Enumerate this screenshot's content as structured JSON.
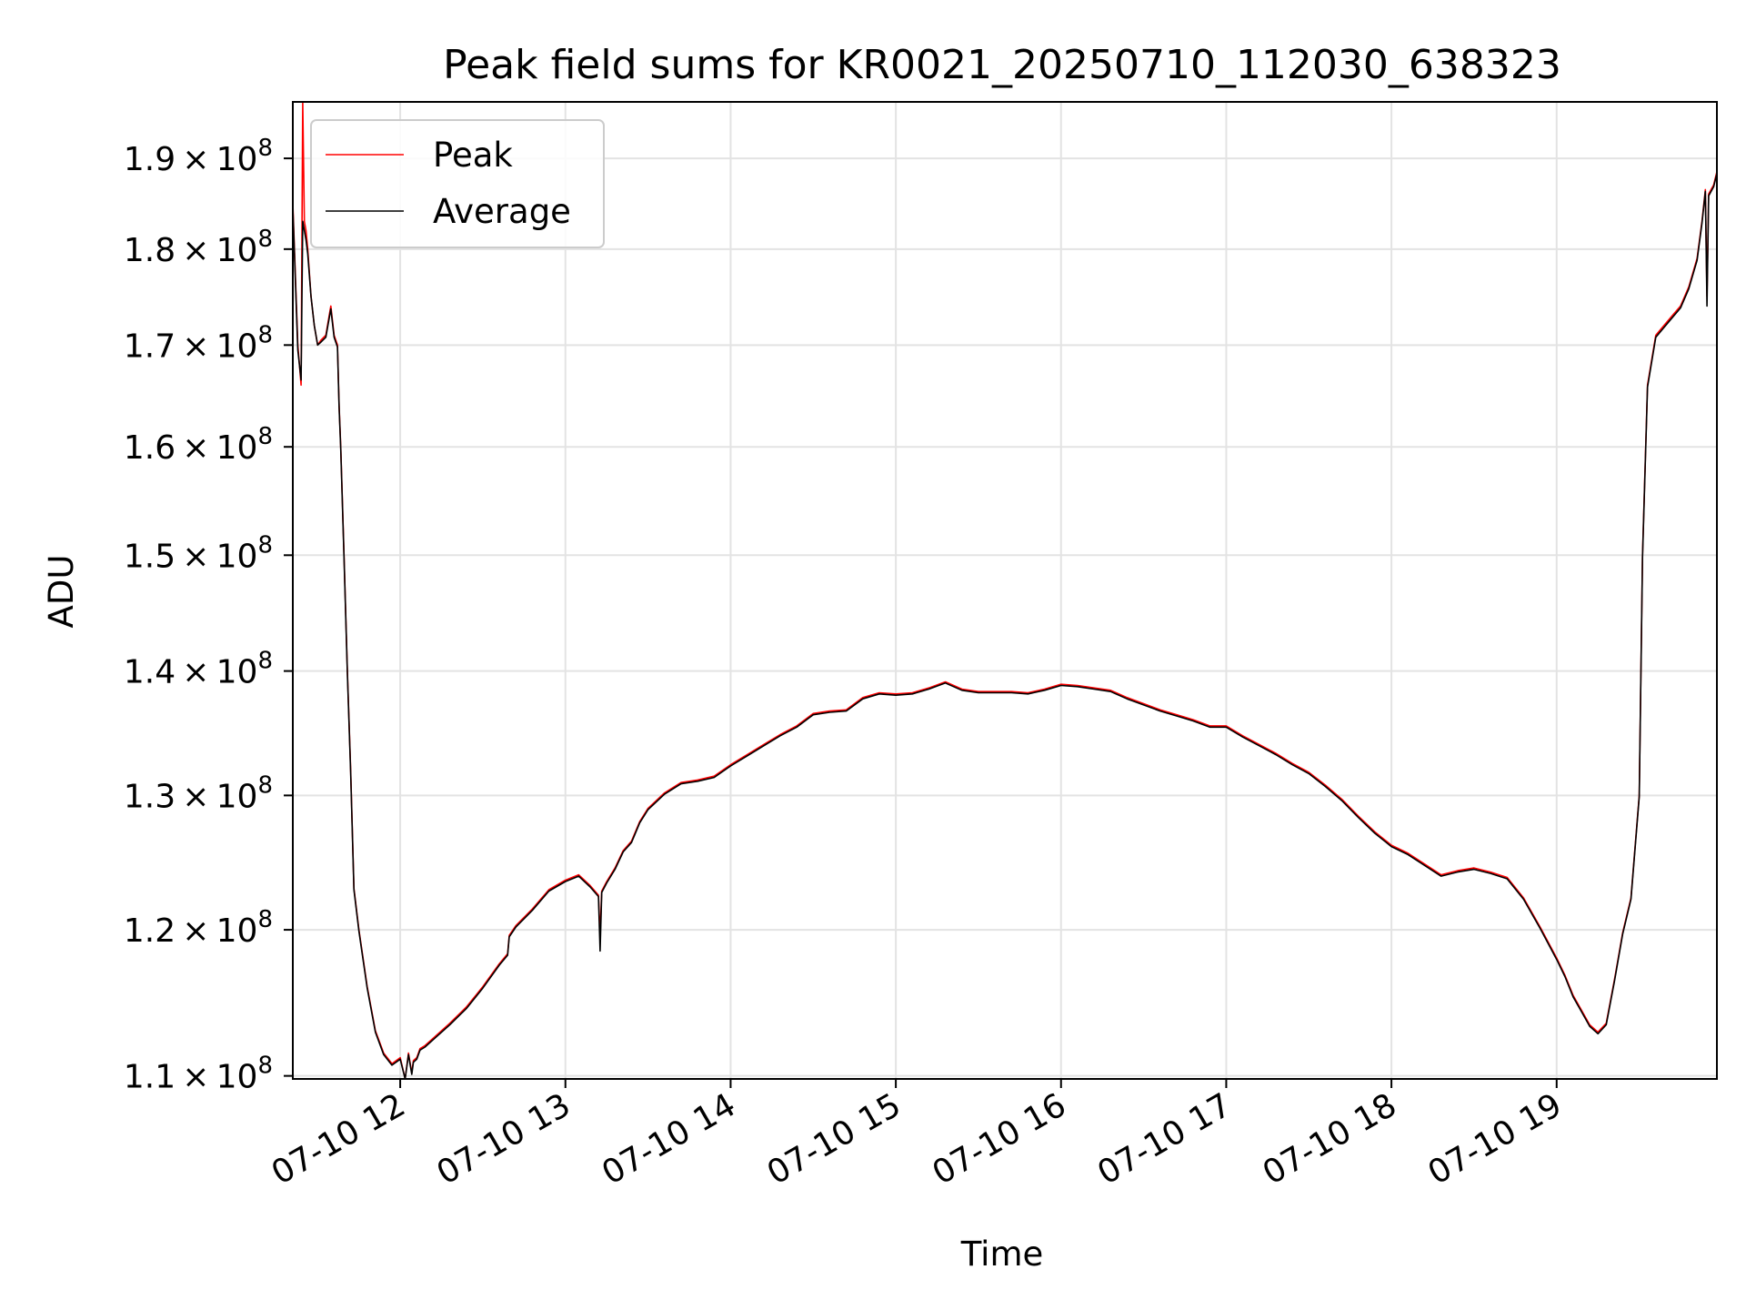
{
  "chart_data": {
    "type": "line",
    "title": "Peak field sums for KR0021_20250710_112030_638323",
    "xlabel": "Time",
    "ylabel": "ADU",
    "x_unit": "hour of 2025-07-10 (local time)",
    "y_scale": "log",
    "xlim": [
      11.35,
      19.97
    ],
    "ylim": [
      109800000,
      196500000
    ],
    "grid": true,
    "legend_position": "upper left",
    "x_ticks": [
      {
        "value": 12,
        "label": "07-10 12"
      },
      {
        "value": 13,
        "label": "07-10 13"
      },
      {
        "value": 14,
        "label": "07-10 14"
      },
      {
        "value": 15,
        "label": "07-10 15"
      },
      {
        "value": 16,
        "label": "07-10 16"
      },
      {
        "value": 17,
        "label": "07-10 17"
      },
      {
        "value": 18,
        "label": "07-10 18"
      },
      {
        "value": 19,
        "label": "07-10 19"
      }
    ],
    "y_ticks": [
      {
        "value": 110000000,
        "mantissa": "1.1",
        "base": "10",
        "exponent": "8"
      },
      {
        "value": 120000000,
        "mantissa": "1.2",
        "base": "10",
        "exponent": "8"
      },
      {
        "value": 130000000,
        "mantissa": "1.3",
        "base": "10",
        "exponent": "8"
      },
      {
        "value": 140000000,
        "mantissa": "1.4",
        "base": "10",
        "exponent": "8"
      },
      {
        "value": 150000000,
        "mantissa": "1.5",
        "base": "10",
        "exponent": "8"
      },
      {
        "value": 160000000,
        "mantissa": "1.6",
        "base": "10",
        "exponent": "8"
      },
      {
        "value": 170000000,
        "mantissa": "1.7",
        "base": "10",
        "exponent": "8"
      },
      {
        "value": 180000000,
        "mantissa": "1.8",
        "base": "10",
        "exponent": "8"
      },
      {
        "value": 190000000,
        "mantissa": "1.9",
        "base": "10",
        "exponent": "8"
      }
    ],
    "series": [
      {
        "name": "Peak",
        "color": "#ff0000",
        "x": [
          11.35,
          11.38,
          11.4,
          11.41,
          11.42,
          11.43,
          11.44,
          11.46,
          11.48,
          11.5,
          11.52,
          11.55,
          11.58,
          11.6,
          11.62,
          11.63,
          11.64,
          11.66,
          11.68,
          11.7,
          11.72,
          11.75,
          11.8,
          11.85,
          11.9,
          11.95,
          12.0,
          12.03,
          12.05,
          12.07,
          12.08,
          12.1,
          12.12,
          12.15,
          12.2,
          12.3,
          12.4,
          12.5,
          12.6,
          12.65,
          12.66,
          12.7,
          12.8,
          12.9,
          13.0,
          13.08,
          13.15,
          13.2,
          13.21,
          13.22,
          13.25,
          13.3,
          13.35,
          13.4,
          13.45,
          13.5,
          13.6,
          13.7,
          13.8,
          13.9,
          14.0,
          14.1,
          14.2,
          14.3,
          14.4,
          14.5,
          14.6,
          14.7,
          14.8,
          14.9,
          15.0,
          15.1,
          15.2,
          15.3,
          15.4,
          15.5,
          15.6,
          15.7,
          15.8,
          15.9,
          16.0,
          16.1,
          16.2,
          16.3,
          16.4,
          16.5,
          16.6,
          16.7,
          16.8,
          16.9,
          17.0,
          17.1,
          17.2,
          17.3,
          17.4,
          17.5,
          17.6,
          17.7,
          17.8,
          17.9,
          18.0,
          18.1,
          18.2,
          18.3,
          18.4,
          18.5,
          18.6,
          18.7,
          18.8,
          18.9,
          19.0,
          19.05,
          19.1,
          19.15,
          19.2,
          19.25,
          19.3,
          19.35,
          19.4,
          19.45,
          19.5,
          19.52,
          19.55,
          19.6,
          19.65,
          19.7,
          19.75,
          19.8,
          19.85,
          19.88,
          19.9,
          19.91,
          19.92,
          19.95,
          19.97
        ],
        "y": [
          185000000,
          170000000,
          166000000,
          196500000,
          183000000,
          182000000,
          180000000,
          175000000,
          172000000,
          170000000,
          170500000,
          171000000,
          174000000,
          171000000,
          170000000,
          164000000,
          160000000,
          150000000,
          140000000,
          132000000,
          123000000,
          120000000,
          116000000,
          113000000,
          111500000,
          110800000,
          111200000,
          109800000,
          111500000,
          110200000,
          111000000,
          111200000,
          111800000,
          112000000,
          112500000,
          113500000,
          114600000,
          116000000,
          117600000,
          118300000,
          119600000,
          120300000,
          121500000,
          122900000,
          123600000,
          124000000,
          123200000,
          122500000,
          119600000,
          122800000,
          123500000,
          124500000,
          125800000,
          126500000,
          128000000,
          129000000,
          130200000,
          131000000,
          131200000,
          131500000,
          132400000,
          133200000,
          134000000,
          134800000,
          135500000,
          136500000,
          136700000,
          136800000,
          137800000,
          138200000,
          138100000,
          138200000,
          138600000,
          139100000,
          138500000,
          138300000,
          138300000,
          138300000,
          138200000,
          138500000,
          138900000,
          138800000,
          138600000,
          138400000,
          137800000,
          137300000,
          136800000,
          136400000,
          136000000,
          135500000,
          135500000,
          134700000,
          134000000,
          133300000,
          132500000,
          131800000,
          130800000,
          129700000,
          128400000,
          127200000,
          126200000,
          125600000,
          124800000,
          124000000,
          124300000,
          124500000,
          124200000,
          123800000,
          122300000,
          120200000,
          118000000,
          116800000,
          115400000,
          114400000,
          113400000,
          112900000,
          113500000,
          116500000,
          119800000,
          122300000,
          130000000,
          150000000,
          166000000,
          171000000,
          172000000,
          173000000,
          174000000,
          176000000,
          179000000,
          183000000,
          186500000,
          175000000,
          186000000,
          187000000,
          188500000
        ]
      },
      {
        "name": "Average",
        "color": "#000000",
        "x": [
          11.35,
          11.38,
          11.4,
          11.41,
          11.42,
          11.43,
          11.44,
          11.46,
          11.48,
          11.5,
          11.52,
          11.55,
          11.58,
          11.6,
          11.62,
          11.63,
          11.64,
          11.66,
          11.68,
          11.7,
          11.72,
          11.75,
          11.8,
          11.85,
          11.9,
          11.95,
          12.0,
          12.03,
          12.05,
          12.07,
          12.08,
          12.1,
          12.12,
          12.15,
          12.2,
          12.3,
          12.4,
          12.5,
          12.6,
          12.65,
          12.66,
          12.7,
          12.8,
          12.9,
          13.0,
          13.08,
          13.15,
          13.2,
          13.21,
          13.22,
          13.25,
          13.3,
          13.35,
          13.4,
          13.45,
          13.5,
          13.6,
          13.7,
          13.8,
          13.9,
          14.0,
          14.1,
          14.2,
          14.3,
          14.4,
          14.5,
          14.6,
          14.7,
          14.8,
          14.9,
          15.0,
          15.1,
          15.2,
          15.3,
          15.4,
          15.5,
          15.6,
          15.7,
          15.8,
          15.9,
          16.0,
          16.1,
          16.2,
          16.3,
          16.4,
          16.5,
          16.6,
          16.7,
          16.8,
          16.9,
          17.0,
          17.1,
          17.2,
          17.3,
          17.4,
          17.5,
          17.6,
          17.7,
          17.8,
          17.9,
          18.0,
          18.1,
          18.2,
          18.3,
          18.4,
          18.5,
          18.6,
          18.7,
          18.8,
          18.9,
          19.0,
          19.05,
          19.1,
          19.15,
          19.2,
          19.25,
          19.3,
          19.35,
          19.4,
          19.45,
          19.5,
          19.52,
          19.55,
          19.6,
          19.65,
          19.7,
          19.75,
          19.8,
          19.85,
          19.88,
          19.9,
          19.91,
          19.92,
          19.95,
          19.97
        ],
        "y": [
          184500000,
          169500000,
          166500000,
          183000000,
          182000000,
          181000000,
          179500000,
          175000000,
          172000000,
          170000000,
          170300000,
          170800000,
          173700000,
          170800000,
          169800000,
          163800000,
          159800000,
          149800000,
          139800000,
          131800000,
          122900000,
          119900000,
          115900000,
          112900000,
          111400000,
          110700000,
          111100000,
          109800000,
          111400000,
          110100000,
          110900000,
          111100000,
          111700000,
          111900000,
          112400000,
          113400000,
          114500000,
          115900000,
          117500000,
          118200000,
          119500000,
          120200000,
          121400000,
          122800000,
          123500000,
          123900000,
          123100000,
          122400000,
          118500000,
          122700000,
          123400000,
          124400000,
          125700000,
          126400000,
          127900000,
          128900000,
          130100000,
          130900000,
          131100000,
          131400000,
          132300000,
          133100000,
          133900000,
          134700000,
          135400000,
          136400000,
          136600000,
          136700000,
          137700000,
          138100000,
          138000000,
          138100000,
          138500000,
          139000000,
          138400000,
          138200000,
          138200000,
          138200000,
          138100000,
          138400000,
          138800000,
          138700000,
          138500000,
          138300000,
          137700000,
          137200000,
          136700000,
          136300000,
          135900000,
          135400000,
          135400000,
          134600000,
          133900000,
          133200000,
          132400000,
          131700000,
          130700000,
          129600000,
          128300000,
          127100000,
          126100000,
          125500000,
          124700000,
          123900000,
          124200000,
          124400000,
          124100000,
          123700000,
          122200000,
          120100000,
          117900000,
          116700000,
          115300000,
          114300000,
          113300000,
          112800000,
          113400000,
          116400000,
          119700000,
          122200000,
          129900000,
          149800000,
          165800000,
          170800000,
          171800000,
          172800000,
          173800000,
          175800000,
          178800000,
          182800000,
          186300000,
          174000000,
          185800000,
          186800000,
          188300000
        ]
      }
    ]
  }
}
